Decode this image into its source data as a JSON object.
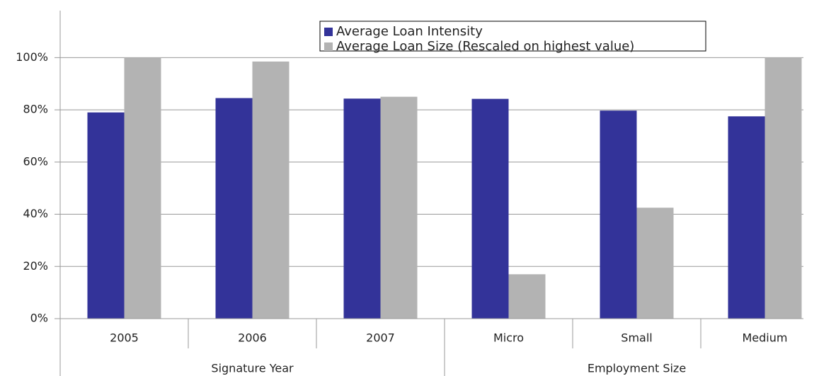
{
  "chart_data": {
    "type": "bar",
    "groups": [
      {
        "name": "Signature Year",
        "categories": [
          "2005",
          "2006",
          "2007"
        ]
      },
      {
        "name": "Employment Size",
        "categories": [
          "Micro",
          "Small",
          "Medium"
        ]
      }
    ],
    "series": [
      {
        "name": "Average Loan Intensity",
        "color": "#333399",
        "values": [
          79,
          84.5,
          84.3,
          84.2,
          79.7,
          77.5
        ]
      },
      {
        "name": "Average Loan Size (Rescaled on highest value)",
        "color": "#b3b3b3",
        "values": [
          100,
          98.5,
          85,
          17,
          42.5,
          100
        ]
      }
    ],
    "ylim": [
      0,
      118
    ],
    "yticks": [
      {
        "value": 0,
        "label": "0%"
      },
      {
        "value": 20,
        "label": "20%"
      },
      {
        "value": 40,
        "label": "40%"
      },
      {
        "value": 60,
        "label": "60%"
      },
      {
        "value": 80,
        "label": "80%"
      },
      {
        "value": 100,
        "label": "100%"
      }
    ],
    "grid": true,
    "legend": "top"
  }
}
